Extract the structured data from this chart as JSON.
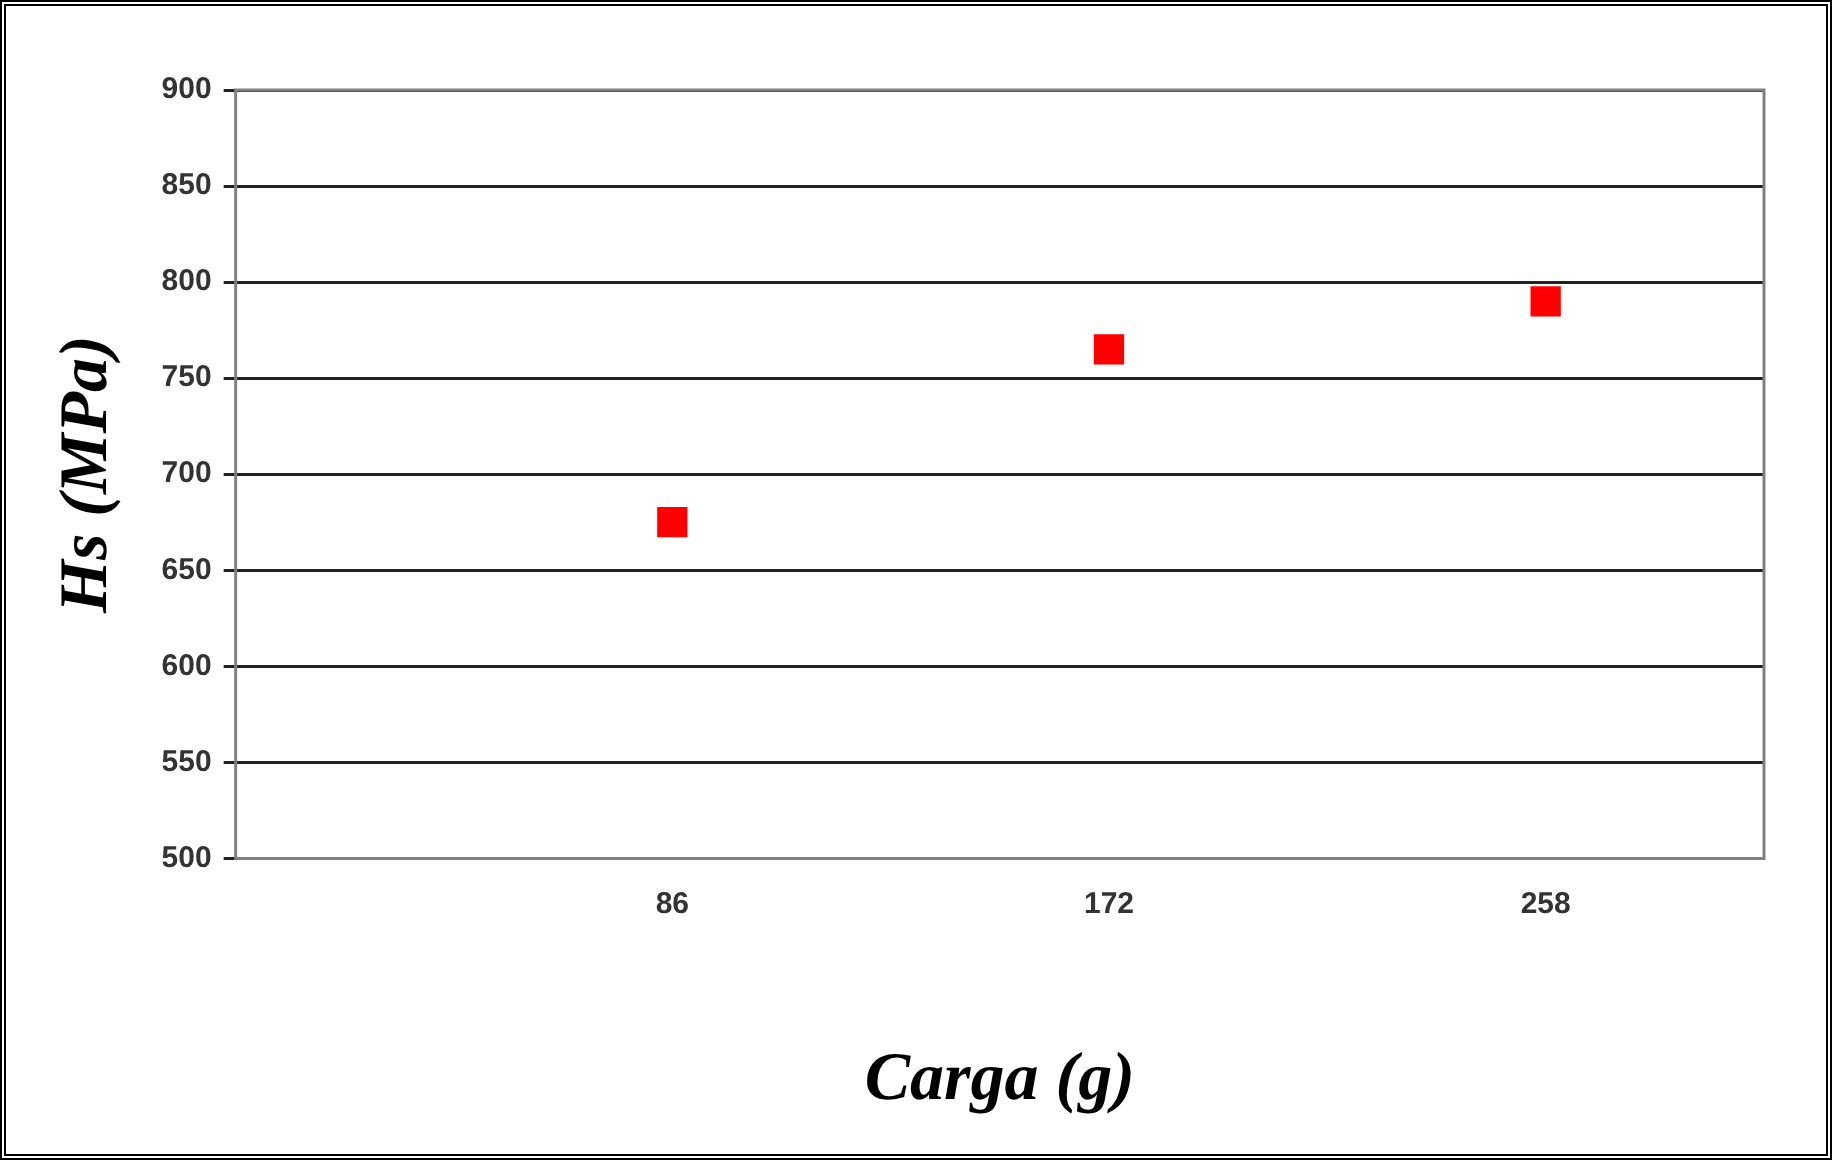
{
  "chart_data": {
    "type": "scatter",
    "xlabel": "Carga (g)",
    "ylabel": "Hs (MPa)",
    "x": [
      86,
      172,
      258
    ],
    "series": [
      {
        "color": "#ff0000",
        "values": [
          675,
          765,
          790
        ]
      }
    ],
    "xlim": [
      0,
      301
    ],
    "xticks": [
      86,
      172,
      258
    ],
    "ylim": [
      500,
      900
    ],
    "yticks": [
      500,
      550,
      600,
      650,
      700,
      750,
      800,
      850,
      900
    ],
    "grid": "y",
    "legend": false,
    "marker": "square"
  }
}
